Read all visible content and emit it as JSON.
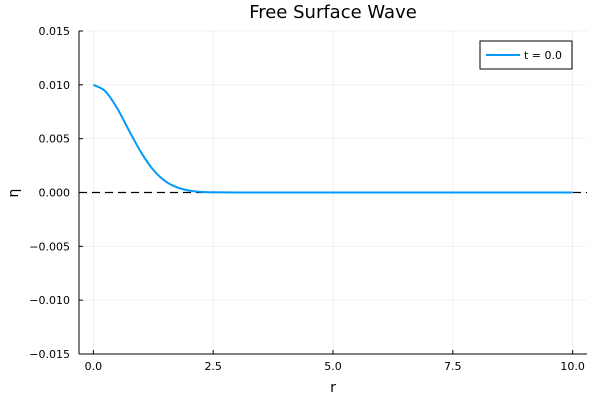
{
  "chart_data": {
    "type": "line",
    "title": "Free Surface Wave",
    "xlabel": "r",
    "ylabel": "η",
    "xlim": [
      -0.3,
      10.3
    ],
    "ylim": [
      -0.015,
      0.015
    ],
    "xticks": [
      0.0,
      2.5,
      5.0,
      7.5,
      10.0
    ],
    "xtick_labels": [
      "0.0",
      "2.5",
      "5.0",
      "7.5",
      "10.0"
    ],
    "yticks": [
      -0.015,
      -0.01,
      -0.005,
      0.0,
      0.005,
      0.01,
      0.015
    ],
    "ytick_labels": [
      "−0.015",
      "−0.010",
      "−0.005",
      "0.000",
      "0.005",
      "0.010",
      "0.015"
    ],
    "grid": true,
    "legend_position": "top-right",
    "series": [
      {
        "name": "t = 0.0",
        "color": "#009AFA",
        "x": [
          0.0,
          0.25,
          0.5,
          0.75,
          1.0,
          1.25,
          1.5,
          1.75,
          2.0,
          2.25,
          2.5,
          3.0,
          4.0,
          5.0,
          6.0,
          7.0,
          8.0,
          9.0,
          10.0
        ],
        "y": [
          0.01,
          0.0094,
          0.0078,
          0.0057,
          0.0037,
          0.0021,
          0.00105,
          0.00047,
          0.00018,
          6e-05,
          2e-05,
          0.0,
          0.0,
          0.0,
          0.0,
          0.0,
          0.0,
          0.0,
          0.0
        ]
      }
    ],
    "reference_line": {
      "y": 0.0,
      "style": "dashed",
      "color": "#000000"
    }
  }
}
